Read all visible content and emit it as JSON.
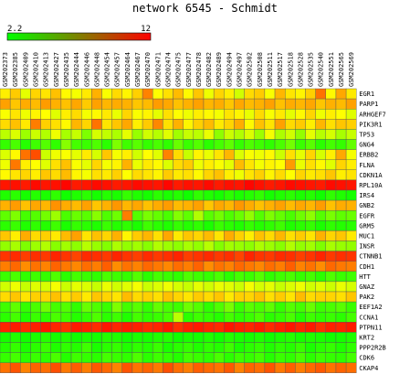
{
  "chart_data": {
    "type": "heatmap",
    "title": "network 6545 - Schmidt",
    "colorscale": {
      "min_label": "2.2",
      "max_label": "12",
      "min": 2.2,
      "max": 12,
      "low_color": "#00ff00",
      "high_color": "#ff0000"
    },
    "columns": [
      "GSM202373",
      "GSM202385",
      "GSM202409",
      "GSM202410",
      "GSM202413",
      "GSM202427",
      "GSM202435",
      "GSM202444",
      "GSM202446",
      "GSM202448",
      "GSM202454",
      "GSM202457",
      "GSM202464",
      "GSM202467",
      "GSM202470",
      "GSM202471",
      "GSM202474",
      "GSM202475",
      "GSM202477",
      "GSM202478",
      "GSM202482",
      "GSM202489",
      "GSM202494",
      "GSM202497",
      "GSM202502",
      "GSM202508",
      "GSM202511",
      "GSM202517",
      "GSM202518",
      "GSM202528",
      "GSM202535",
      "GSM202540",
      "GSM202551",
      "GSM202565",
      "GSM202569"
    ],
    "rows": [
      "EGR1",
      "PARP1",
      "ARHGEF7",
      "PIK3R1",
      "TP53",
      "GNG4",
      "ERBB2",
      "FLNA",
      "CDKN1A",
      "RPL10A",
      "IRS4",
      "GNB2",
      "EGFR",
      "GRM5",
      "MUC1",
      "INSR",
      "CTNNB1",
      "CDH1",
      "HTT",
      "GNAZ",
      "PAK2",
      "EEF1A2",
      "CCNA1",
      "PTPN11",
      "KRT2",
      "PPP2R2B",
      "CDK6",
      "CKAP4"
    ],
    "values": [
      [
        7.4,
        8.1,
        6.6,
        7.9,
        7.6,
        8.3,
        7.2,
        6.9,
        7.5,
        8.6,
        7.0,
        7.8,
        7.3,
        8.0,
        9.5,
        7.1,
        7.7,
        8.4,
        7.2,
        8.2,
        6.8,
        7.9,
        7.4,
        6.2,
        7.8,
        8.1,
        7.0,
        8.5,
        7.6,
        7.3,
        8.0,
        9.8,
        7.2,
        8.8,
        7.5
      ],
      [
        8.9,
        8.2,
        8.7,
        8.4,
        9.0,
        8.6,
        8.3,
        8.8,
        8.1,
        8.9,
        8.5,
        8.7,
        8.6,
        8.2,
        8.4,
        9.0,
        8.8,
        8.3,
        8.6,
        8.9,
        8.5,
        8.7,
        8.2,
        8.8,
        8.4,
        8.6,
        8.9,
        8.3,
        8.7,
        8.5,
        8.8,
        8.2,
        8.6,
        8.4,
        8.9
      ],
      [
        7.0,
        7.6,
        6.8,
        7.3,
        7.1,
        6.5,
        7.4,
        7.8,
        6.9,
        7.2,
        7.5,
        6.7,
        7.9,
        7.0,
        7.3,
        6.6,
        7.7,
        7.1,
        6.8,
        7.4,
        7.2,
        6.9,
        7.6,
        7.3,
        6.7,
        7.8,
        7.0,
        7.5,
        6.6,
        7.2,
        7.9,
        6.8,
        7.4,
        7.1,
        6.5
      ],
      [
        7.8,
        8.3,
        7.5,
        9.6,
        8.0,
        7.7,
        7.2,
        8.5,
        7.9,
        9.8,
        7.6,
        8.2,
        8.8,
        7.4,
        8.1,
        9.4,
        7.7,
        8.6,
        7.3,
        8.0,
        8.4,
        7.5,
        7.9,
        8.7,
        7.2,
        8.3,
        7.6,
        8.9,
        7.8,
        8.1,
        7.4,
        8.5,
        7.7,
        8.2,
        8.0
      ],
      [
        5.8,
        6.4,
        5.2,
        6.1,
        5.6,
        6.8,
        5.4,
        6.0,
        4.6,
        6.3,
        5.9,
        5.5,
        6.6,
        5.1,
        6.2,
        5.7,
        6.5,
        5.3,
        6.0,
        5.8,
        6.7,
        4.9,
        6.1,
        5.6,
        6.4,
        5.2,
        6.9,
        5.5,
        6.2,
        5.0,
        6.6,
        5.7,
        6.3,
        5.4,
        6.0
      ],
      [
        3.2,
        3.6,
        2.9,
        3.4,
        3.8,
        3.1,
        4.8,
        3.5,
        3.3,
        3.7,
        3.0,
        4.6,
        3.4,
        3.9,
        3.2,
        3.6,
        3.1,
        4.2,
        3.3,
        3.8,
        3.0,
        3.5,
        4.0,
        3.2,
        3.7,
        3.4,
        3.1,
        3.6,
        4.4,
        3.3,
        3.9,
        3.0,
        3.5,
        3.2,
        4.1
      ],
      [
        6.4,
        7.2,
        9.8,
        10.5,
        6.1,
        6.8,
        7.0,
        6.6,
        7.5,
        6.3,
        8.2,
        6.9,
        7.4,
        6.2,
        7.1,
        6.5,
        9.5,
        7.8,
        6.0,
        7.3,
        6.7,
        7.6,
        8.5,
        6.4,
        7.0,
        6.8,
        7.2,
        6.1,
        7.7,
        6.6,
        7.9,
        6.3,
        7.4,
        8.8,
        6.9
      ],
      [
        6.8,
        9.7,
        7.4,
        7.1,
        6.5,
        7.7,
        8.3,
        7.0,
        6.6,
        7.9,
        6.9,
        7.3,
        8.6,
        6.7,
        7.5,
        7.2,
        6.4,
        7.8,
        8.1,
        6.8,
        7.4,
        7.0,
        6.6,
        8.4,
        7.6,
        6.9,
        7.3,
        7.1,
        9.0,
        6.7,
        7.7,
        7.2,
        6.5,
        7.9,
        7.4
      ],
      [
        7.2,
        7.6,
        7.9,
        7.4,
        8.2,
        7.8,
        8.4,
        7.3,
        6.9,
        7.7,
        7.5,
        8.0,
        7.1,
        7.8,
        7.6,
        7.3,
        8.1,
        7.5,
        7.7,
        7.2,
        7.9,
        8.3,
        7.4,
        6.8,
        7.6,
        8.0,
        7.3,
        7.8,
        7.1,
        7.9,
        7.5,
        7.7,
        8.2,
        7.4,
        7.6
      ],
      [
        11.6,
        11.7,
        11.5,
        11.8,
        11.6,
        11.7,
        11.9,
        11.5,
        11.6,
        11.8,
        11.7,
        11.5,
        11.6,
        11.8,
        11.7,
        11.6,
        11.9,
        11.5,
        11.7,
        11.6,
        11.8,
        11.5,
        11.7,
        11.6,
        11.9,
        11.7,
        11.5,
        11.6,
        11.8,
        11.7,
        11.6,
        11.5,
        11.8,
        11.7,
        11.6
      ],
      [
        2.8,
        3.0,
        2.6,
        2.9,
        2.7,
        3.1,
        2.5,
        2.8,
        3.0,
        2.6,
        2.9,
        2.7,
        3.2,
        2.8,
        2.6,
        3.0,
        2.7,
        2.9,
        2.5,
        3.1,
        2.8,
        2.6,
        3.0,
        2.7,
        2.9,
        3.1,
        2.6,
        2.8,
        3.0,
        2.7,
        2.9,
        2.5,
        3.1,
        2.8,
        2.6
      ],
      [
        8.6,
        9.0,
        8.3,
        8.8,
        8.5,
        9.2,
        8.7,
        8.4,
        8.9,
        8.2,
        8.6,
        9.1,
        8.5,
        8.8,
        8.3,
        8.7,
        9.0,
        8.4,
        8.6,
        8.9,
        8.2,
        8.8,
        8.5,
        9.1,
        8.7,
        8.3,
        8.6,
        8.9,
        8.4,
        8.8,
        8.5,
        9.0,
        8.3,
        8.7,
        8.6
      ],
      [
        4.0,
        4.6,
        3.5,
        3.8,
        4.4,
        5.2,
        3.6,
        4.2,
        3.9,
        4.8,
        3.7,
        4.3,
        9.6,
        3.8,
        4.5,
        4.1,
        3.6,
        4.7,
        4.0,
        5.6,
        3.9,
        4.4,
        3.7,
        4.2,
        5.0,
        3.8,
        4.6,
        4.1,
        3.6,
        4.3,
        4.9,
        3.8,
        4.5,
        4.0,
        4.2
      ],
      [
        3.0,
        3.3,
        2.8,
        3.1,
        2.9,
        3.4,
        2.7,
        3.2,
        3.0,
        2.8,
        3.3,
        2.9,
        3.1,
        2.7,
        3.4,
        3.0,
        2.8,
        3.2,
        2.9,
        3.1,
        2.7,
        3.3,
        3.0,
        2.8,
        3.2,
        2.9,
        3.1,
        3.4,
        2.8,
        3.0,
        3.2,
        2.7,
        3.1,
        2.9,
        3.0
      ],
      [
        8.2,
        7.4,
        8.7,
        7.8,
        8.0,
        7.5,
        8.4,
        8.9,
        7.6,
        8.3,
        7.9,
        8.6,
        7.3,
        8.1,
        8.5,
        7.7,
        8.8,
        7.5,
        8.2,
        7.9,
        8.4,
        7.6,
        8.7,
        8.0,
        7.4,
        8.3,
        7.8,
        8.5,
        7.7,
        8.1,
        7.6,
        8.6,
        7.9,
        8.2,
        7.5
      ],
      [
        5.0,
        5.4,
        4.6,
        5.2,
        5.6,
        4.8,
        5.3,
        4.9,
        5.7,
        5.1,
        4.7,
        5.5,
        5.0,
        5.3,
        4.8,
        5.6,
        5.2,
        4.9,
        5.4,
        5.0,
        5.7,
        4.7,
        5.3,
        5.1,
        4.9,
        5.5,
        5.2,
        4.8,
        5.6,
        5.0,
        5.3,
        4.6,
        5.4,
        5.1,
        5.0
      ],
      [
        11.0,
        11.2,
        10.8,
        11.1,
        10.9,
        11.3,
        11.0,
        10.7,
        11.2,
        11.1,
        10.9,
        11.3,
        11.0,
        10.8,
        11.2,
        10.9,
        11.1,
        11.3,
        10.8,
        11.0,
        11.2,
        10.9,
        11.1,
        10.7,
        11.3,
        11.0,
        10.9,
        11.2,
        11.1,
        10.8,
        11.0,
        11.3,
        10.9,
        11.1,
        11.0
      ],
      [
        9.6,
        10.0,
        9.3,
        9.8,
        9.5,
        10.1,
        9.7,
        9.4,
        9.9,
        9.6,
        10.2,
        9.3,
        9.8,
        9.5,
        10.0,
        9.7,
        9.4,
        9.9,
        9.6,
        10.1,
        9.3,
        9.8,
        9.5,
        10.0,
        9.7,
        9.4,
        9.9,
        9.6,
        10.2,
        9.5,
        9.8,
        9.3,
        10.0,
        9.7,
        9.6
      ],
      [
        3.3,
        3.6,
        3.1,
        3.4,
        3.2,
        3.7,
        3.0,
        3.5,
        3.3,
        3.1,
        3.6,
        3.4,
        3.2,
        3.8,
        3.0,
        3.5,
        3.3,
        3.1,
        3.7,
        3.4,
        3.2,
        3.6,
        3.0,
        3.5,
        3.3,
        3.8,
        3.1,
        3.4,
        3.6,
        3.2,
        3.5,
        3.0,
        3.7,
        3.3,
        3.4
      ],
      [
        6.2,
        6.8,
        6.0,
        6.5,
        6.3,
        6.9,
        6.1,
        6.6,
        6.4,
        6.0,
        6.7,
        6.2,
        6.5,
        6.9,
        6.1,
        6.4,
        6.8,
        6.3,
        6.0,
        6.6,
        6.2,
        6.7,
        6.5,
        6.1,
        6.9,
        6.3,
        6.6,
        6.0,
        6.4,
        6.8,
        6.2,
        6.5,
        6.1,
        6.7,
        6.3
      ],
      [
        7.8,
        8.2,
        7.6,
        8.0,
        7.9,
        8.3,
        7.7,
        8.1,
        7.5,
        8.2,
        7.9,
        7.6,
        8.4,
        7.8,
        8.0,
        7.7,
        8.3,
        7.9,
        7.6,
        8.1,
        7.8,
        8.2,
        7.5,
        8.0,
        7.9,
        8.3,
        7.7,
        8.1,
        7.6,
        8.4,
        7.8,
        8.0,
        7.9,
        7.7,
        8.2
      ],
      [
        3.4,
        4.0,
        3.2,
        3.6,
        4.4,
        3.5,
        3.8,
        3.1,
        4.2,
        3.7,
        3.3,
        4.6,
        3.5,
        3.9,
        3.2,
        4.1,
        3.6,
        3.4,
        4.3,
        3.8,
        3.1,
        3.7,
        4.5,
        3.3,
        3.9,
        3.6,
        4.0,
        3.2,
        3.8,
        3.5,
        4.2,
        3.4,
        3.6,
        3.9,
        3.3
      ],
      [
        3.0,
        3.5,
        2.8,
        3.3,
        3.1,
        3.6,
        3.4,
        2.9,
        3.2,
        3.7,
        3.0,
        3.4,
        2.8,
        3.5,
        3.1,
        3.3,
        3.6,
        5.8,
        3.0,
        3.4,
        3.2,
        2.9,
        3.5,
        3.1,
        3.3,
        3.7,
        3.0,
        3.2,
        3.6,
        2.9,
        3.4,
        3.1,
        3.3,
        3.0,
        3.5
      ],
      [
        11.3,
        11.5,
        11.2,
        11.4,
        11.6,
        11.3,
        11.1,
        11.5,
        11.4,
        11.2,
        11.6,
        11.3,
        11.5,
        11.4,
        11.2,
        11.3,
        11.6,
        11.1,
        11.4,
        11.5,
        11.3,
        11.2,
        11.6,
        11.4,
        11.3,
        11.5,
        11.2,
        11.4,
        11.6,
        11.3,
        11.5,
        11.1,
        11.4,
        11.3,
        11.5
      ],
      [
        2.6,
        2.8,
        2.5,
        2.7,
        2.9,
        2.6,
        2.8,
        2.5,
        2.7,
        2.6,
        2.9,
        2.8,
        2.5,
        2.7,
        2.6,
        2.8,
        2.9,
        2.5,
        2.7,
        2.6,
        2.8,
        2.5,
        2.9,
        2.7,
        2.6,
        2.8,
        2.5,
        2.7,
        2.9,
        2.6,
        2.8,
        2.7,
        2.5,
        2.6,
        2.8
      ],
      [
        2.9,
        3.2,
        2.7,
        3.0,
        3.3,
        2.8,
        3.1,
        2.9,
        3.4,
        2.7,
        3.0,
        3.2,
        2.8,
        3.1,
        2.9,
        3.3,
        2.7,
        3.0,
        3.2,
        2.8,
        3.1,
        2.9,
        3.4,
        2.7,
        3.0,
        3.2,
        2.8,
        3.1,
        2.9,
        3.3,
        2.7,
        3.0,
        3.2,
        2.8,
        3.1
      ],
      [
        3.2,
        3.5,
        3.0,
        3.3,
        3.1,
        3.6,
        2.9,
        3.4,
        3.2,
        3.0,
        3.5,
        3.3,
        3.1,
        3.7,
        3.0,
        3.4,
        3.2,
        2.9,
        3.5,
        3.3,
        3.1,
        3.6,
        3.0,
        3.4,
        3.2,
        3.5,
        2.9,
        3.3,
        3.1,
        3.6,
        3.0,
        3.4,
        3.2,
        3.1,
        3.5
      ],
      [
        9.8,
        10.4,
        9.5,
        10.1,
        9.9,
        10.5,
        9.7,
        10.2,
        9.6,
        10.3,
        10.0,
        9.5,
        10.4,
        9.8,
        10.1,
        9.7,
        10.5,
        9.9,
        9.6,
        10.2,
        10.0,
        9.8,
        10.3,
        9.5,
        10.1,
        9.9,
        10.4,
        9.7,
        10.2,
        9.6,
        10.0,
        10.3,
        9.8,
        10.1,
        9.9
      ]
    ]
  }
}
